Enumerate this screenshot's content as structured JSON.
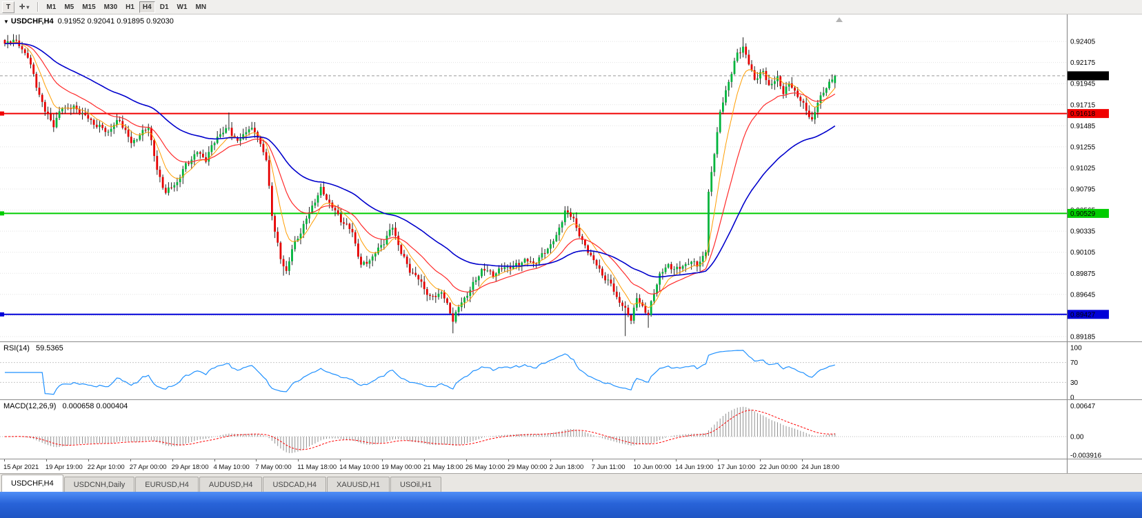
{
  "toolbar": {
    "handle_label": "T",
    "tool_icon": "✛",
    "dropdown_icon": "▾",
    "timeframes": [
      "M1",
      "M5",
      "M15",
      "M30",
      "H1",
      "H4",
      "D1",
      "W1",
      "MN"
    ],
    "active_timeframe": "H4"
  },
  "icons": {
    "title_marker": "▼"
  },
  "tabs": [
    {
      "label": "USDCHF,H4",
      "active": true
    },
    {
      "label": "USDCNH,Daily",
      "active": false
    },
    {
      "label": "EURUSD,H4",
      "active": false
    },
    {
      "label": "AUDUSD,H4",
      "active": false
    },
    {
      "label": "USDCAD,H4",
      "active": false
    },
    {
      "label": "XAUUSD,H1",
      "active": false
    },
    {
      "label": "USOil,H1",
      "active": false
    }
  ],
  "colors": {
    "candle_up": "#00b43c",
    "candle_down": "#e60000",
    "wick": "#222222",
    "grid": "#e2e2e2"
  },
  "chart_data": {
    "type": "candlestick",
    "symbol": "USDCHF",
    "timeframe": "H4",
    "title": "USDCHF,H4",
    "ohlc_text": "0.91952 0.92041 0.91895 0.92030",
    "ohlc_current": {
      "open": 0.91952,
      "high": 0.92041,
      "low": 0.91895,
      "close": 0.9203
    },
    "y_range_main": [
      0.89132,
      0.92699
    ],
    "y_axis_ticks": [
      "0.92405",
      "0.92175",
      "0.91945",
      "0.91715",
      "0.91485",
      "0.91255",
      "0.91025",
      "0.90795",
      "0.90565",
      "0.90335",
      "0.90105",
      "0.89875",
      "0.89645",
      "0.89415",
      "0.89185"
    ],
    "x_axis_ticks": [
      "15 Apr 2021",
      "19 Apr 19:00",
      "22 Apr 10:00",
      "27 Apr 00:00",
      "29 Apr 18:00",
      "4 May 10:00",
      "7 May 00:00",
      "11 May 18:00",
      "14 May 10:00",
      "19 May 00:00",
      "21 May 18:00",
      "26 May 10:00",
      "29 May 00:00",
      "2 Jun 18:00",
      "7 Jun 11:00",
      "10 Jun 00:00",
      "14 Jun 19:00",
      "17 Jun 10:00",
      "22 Jun 00:00",
      "24 Jun 18:00"
    ],
    "n_candles": 290,
    "close_noise": 0.00042,
    "wick_noise": 0.0007,
    "price_path_anchors": [
      [
        0,
        0.9236
      ],
      [
        3,
        0.9242
      ],
      [
        8,
        0.9226
      ],
      [
        11,
        0.9192
      ],
      [
        14,
        0.9163
      ],
      [
        17,
        0.915
      ],
      [
        20,
        0.917
      ],
      [
        24,
        0.9167
      ],
      [
        28,
        0.9159
      ],
      [
        32,
        0.915
      ],
      [
        36,
        0.9141
      ],
      [
        40,
        0.9155
      ],
      [
        44,
        0.9131
      ],
      [
        48,
        0.914
      ],
      [
        50,
        0.9147
      ],
      [
        53,
        0.91
      ],
      [
        56,
        0.9077
      ],
      [
        60,
        0.9086
      ],
      [
        63,
        0.9105
      ],
      [
        67,
        0.9121
      ],
      [
        70,
        0.9112
      ],
      [
        74,
        0.9136
      ],
      [
        78,
        0.9147
      ],
      [
        81,
        0.9131
      ],
      [
        85,
        0.9145
      ],
      [
        88,
        0.9138
      ],
      [
        91,
        0.9112
      ],
      [
        93,
        0.9052
      ],
      [
        96,
        0.9001
      ],
      [
        98,
        0.8989
      ],
      [
        100,
        0.9014
      ],
      [
        104,
        0.9041
      ],
      [
        108,
        0.9066
      ],
      [
        110,
        0.9078
      ],
      [
        114,
        0.9061
      ],
      [
        117,
        0.9046
      ],
      [
        121,
        0.9031
      ],
      [
        124,
        0.8996
      ],
      [
        128,
        0.9006
      ],
      [
        132,
        0.9021
      ],
      [
        135,
        0.9038
      ],
      [
        138,
        0.9011
      ],
      [
        141,
        0.8991
      ],
      [
        145,
        0.8976
      ],
      [
        148,
        0.8961
      ],
      [
        152,
        0.8968
      ],
      [
        156,
        0.8936
      ],
      [
        159,
        0.8956
      ],
      [
        163,
        0.8976
      ],
      [
        166,
        0.8991
      ],
      [
        170,
        0.8986
      ],
      [
        174,
        0.8996
      ],
      [
        177,
        0.8994
      ],
      [
        181,
        0.9001
      ],
      [
        184,
        0.8999
      ],
      [
        188,
        0.9011
      ],
      [
        192,
        0.9026
      ],
      [
        195,
        0.9056
      ],
      [
        198,
        0.9048
      ],
      [
        201,
        0.9021
      ],
      [
        204,
        0.9006
      ],
      [
        207,
        0.8991
      ],
      [
        211,
        0.8976
      ],
      [
        213,
        0.8961
      ],
      [
        216,
        0.8946
      ],
      [
        218,
        0.8938
      ],
      [
        220,
        0.8961
      ],
      [
        224,
        0.8943
      ],
      [
        228,
        0.8986
      ],
      [
        231,
        0.8996
      ],
      [
        235,
        0.8993
      ],
      [
        238,
        0.8999
      ],
      [
        241,
        0.8996
      ],
      [
        244,
        0.9012
      ],
      [
        245,
        0.9076
      ],
      [
        247,
        0.9121
      ],
      [
        249,
        0.9161
      ],
      [
        251,
        0.9186
      ],
      [
        253,
        0.9206
      ],
      [
        255,
        0.9228
      ],
      [
        257,
        0.9236
      ],
      [
        259,
        0.9216
      ],
      [
        261,
        0.9199
      ],
      [
        264,
        0.9206
      ],
      [
        266,
        0.9193
      ],
      [
        269,
        0.9201
      ],
      [
        271,
        0.9186
      ],
      [
        273,
        0.9193
      ],
      [
        276,
        0.9181
      ],
      [
        278,
        0.9171
      ],
      [
        281,
        0.9156
      ],
      [
        283,
        0.9173
      ],
      [
        285,
        0.9186
      ],
      [
        287,
        0.9193
      ],
      [
        289,
        0.9203
      ]
    ],
    "spikes": [
      {
        "i": 78,
        "high": 0.9163
      },
      {
        "i": 97,
        "low": 0.8985
      },
      {
        "i": 156,
        "low": 0.8922
      },
      {
        "i": 216,
        "low": 0.8919
      },
      {
        "i": 224,
        "low": 0.8928
      },
      {
        "i": 257,
        "high": 0.9245
      }
    ],
    "h_lines": [
      {
        "name": "resistance-line",
        "price": 0.91618,
        "label": "0.91618",
        "color": "#f00000",
        "label_text_color": "#ffffff"
      },
      {
        "name": "pivot-line",
        "price": 0.90529,
        "label": "0.90529",
        "color": "#00cc00",
        "label_text_color": "#000000"
      },
      {
        "name": "support-line",
        "price": 0.89427,
        "label": "0.89427",
        "color": "#0000d8",
        "label_text_color": "#ffffff"
      }
    ],
    "current_price": {
      "value": 0.9203,
      "label": "0.92030",
      "bg": "#000000",
      "fg": "#ffffff"
    },
    "moving_averages": [
      {
        "period": 8,
        "color": "#ff9d00",
        "width": 1
      },
      {
        "period": 21,
        "color": "#ff2a2a",
        "width": 1.2
      },
      {
        "period": 55,
        "color": "#0000cc",
        "width": 1.6
      }
    ],
    "rsi": {
      "label": "RSI(14)",
      "period": 14,
      "current": "59.5365",
      "levels": [
        100,
        70,
        30,
        0
      ],
      "axis_labels": [
        "100",
        "70",
        "30",
        "0"
      ],
      "color": "#1e90ff",
      "range": [
        0,
        100
      ]
    },
    "macd": {
      "label": "MACD(12,26,9)",
      "fast": 12,
      "slow": 26,
      "signal": 9,
      "current": "0.000658 0.000404",
      "axis": [
        {
          "v": 0.00647,
          "label": "0.00647"
        },
        {
          "v": 0,
          "label": "0.00"
        },
        {
          "v": -0.003916,
          "label": "-0.003916"
        }
      ],
      "hist_color": "#909090",
      "signal_color": "#ff0000",
      "y_range": [
        -0.0042,
        0.0068
      ]
    }
  }
}
